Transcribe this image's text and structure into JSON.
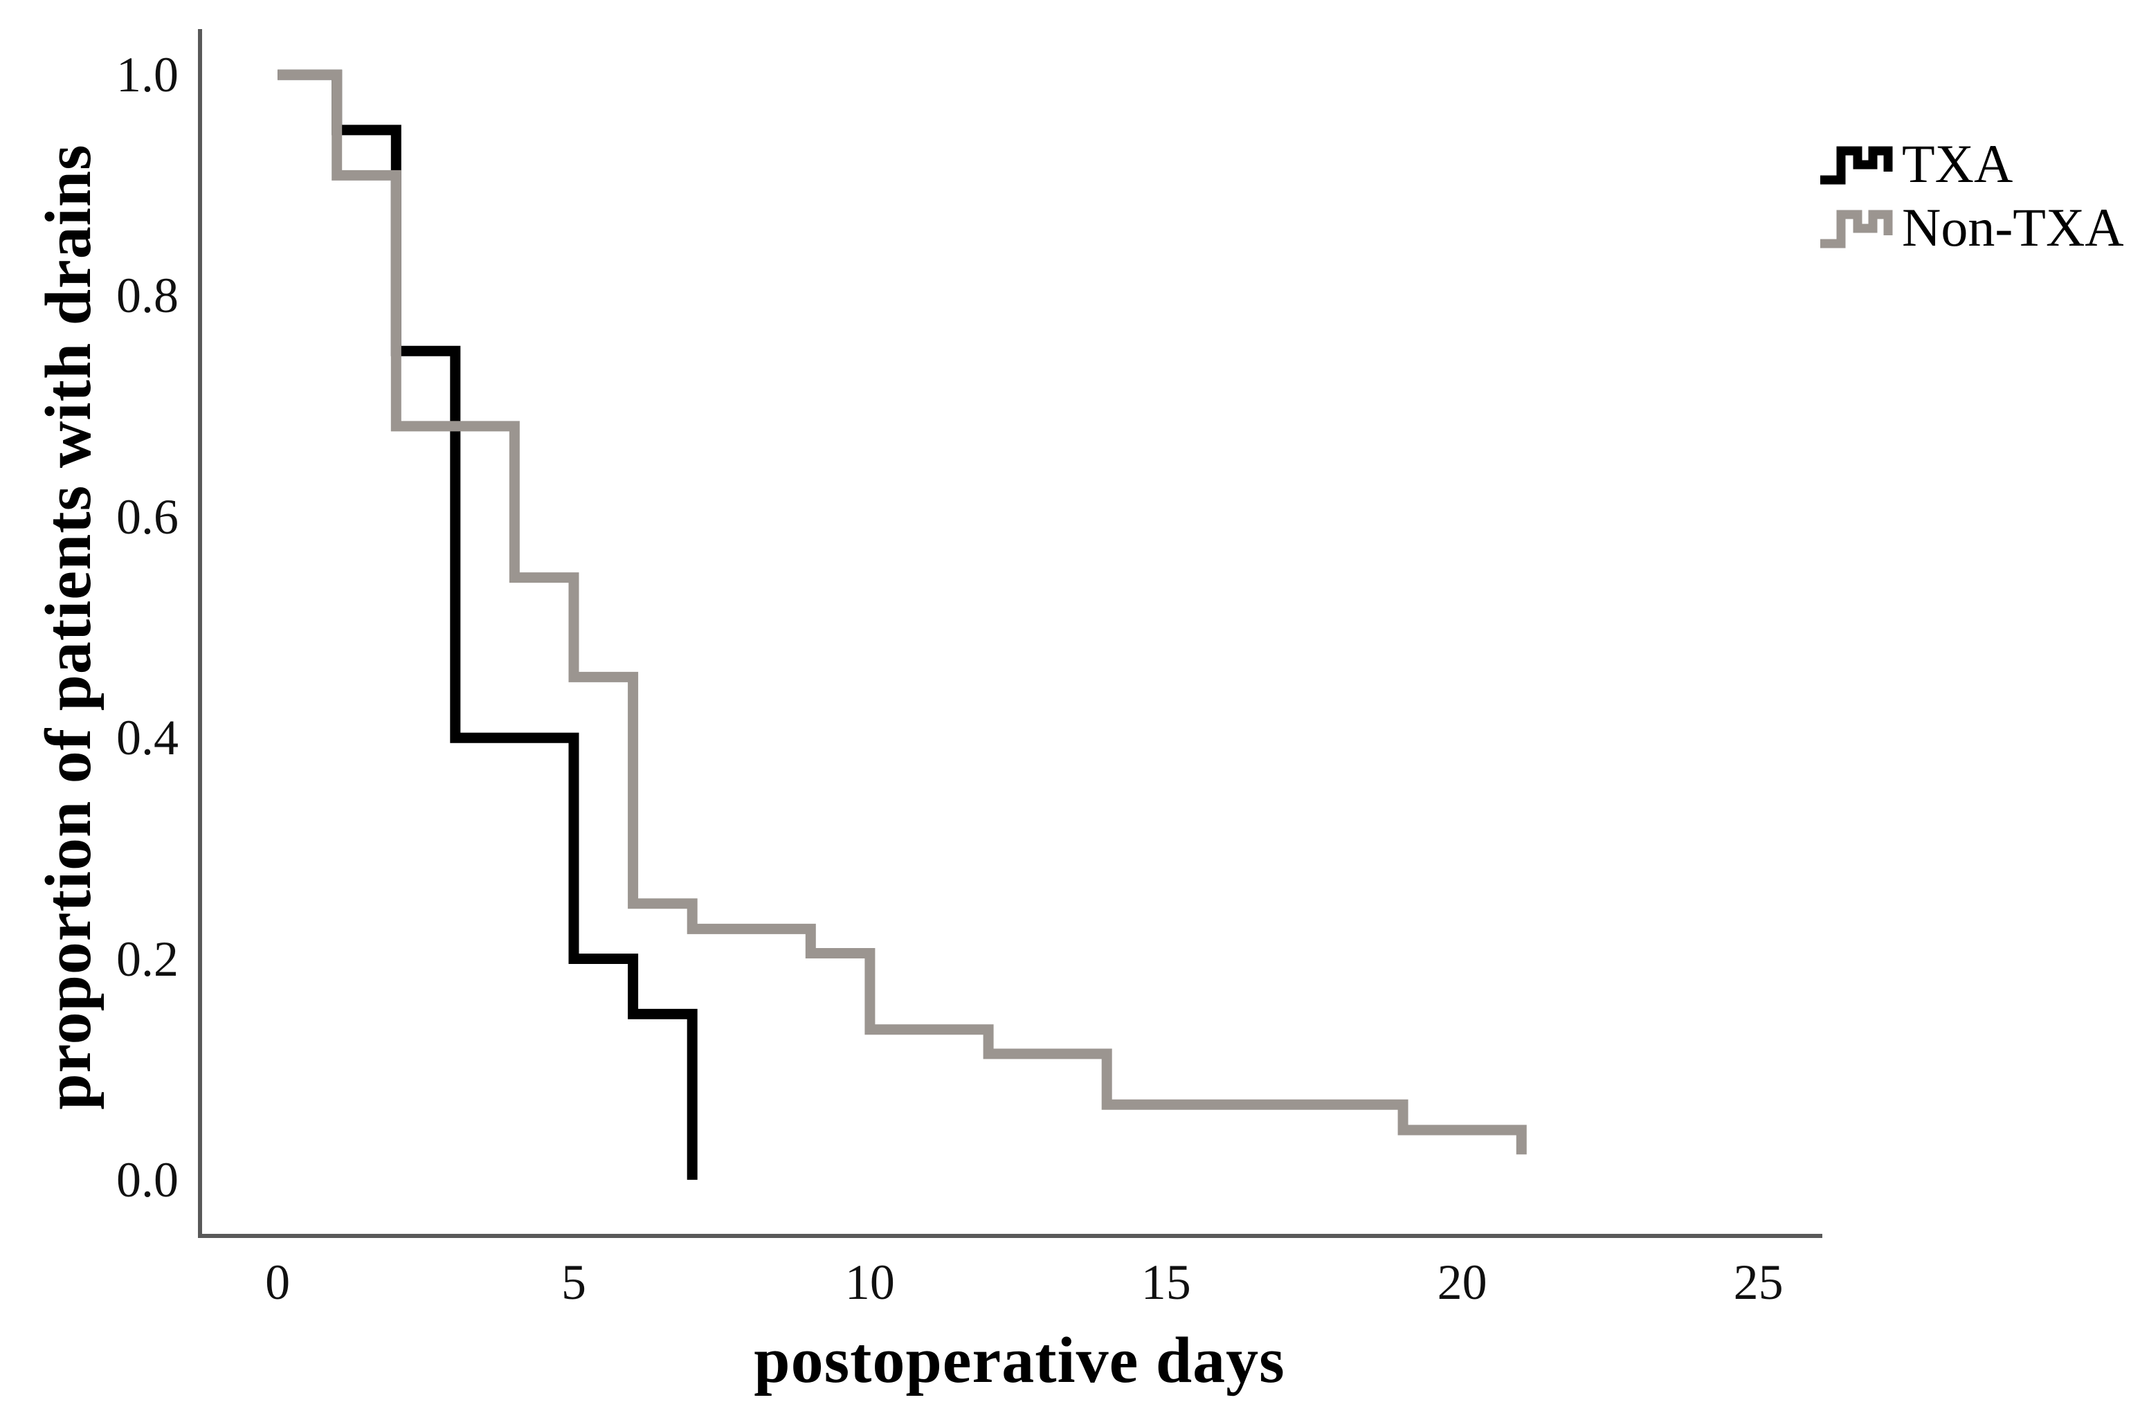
{
  "figure": {
    "background": "#ffffff",
    "axis_color": "#595959",
    "text_color": "#000000"
  },
  "legend": {
    "position": "upper-right",
    "entries": [
      {
        "label": "TXA",
        "swatch": "black-step-glyph"
      },
      {
        "label": "Non-TXA",
        "swatch": "gray-step-glyph"
      }
    ]
  },
  "chart_data": {
    "type": "line",
    "subtype": "kaplan-meier-step",
    "title": "",
    "xlabel": "postoperative days",
    "ylabel": "proportion of patients with drains",
    "grid": false,
    "legend_position": "upper right",
    "xlim": [
      -1.31,
      26.08
    ],
    "ylim": [
      -0.0508,
      1.0414
    ],
    "xticks": {
      "values": [
        0,
        5,
        10,
        15,
        20,
        25
      ],
      "labels": [
        "0",
        "5",
        "10",
        "15",
        "20",
        "25"
      ]
    },
    "yticks": {
      "values": [
        0.0,
        0.2,
        0.4,
        0.6,
        0.8,
        1.0
      ],
      "labels": [
        "0.0",
        "0.2",
        "0.4",
        "0.6",
        "0.8",
        "1.0"
      ]
    },
    "series": [
      {
        "name": "TXA",
        "color": "#000000",
        "points_note": "step values: [postoperative day, proportion still with drain]",
        "points": [
          [
            0,
            1.0
          ],
          [
            1,
            0.95
          ],
          [
            2,
            0.75
          ],
          [
            3,
            0.4
          ],
          [
            5,
            0.2
          ],
          [
            6,
            0.15
          ],
          [
            7,
            0.0
          ]
        ]
      },
      {
        "name": "Non-TXA",
        "color": "#9b9590",
        "points_note": "step values: [postoperative day, proportion still with drain]",
        "points": [
          [
            0,
            1.0
          ],
          [
            1,
            0.909
          ],
          [
            2,
            0.682
          ],
          [
            4,
            0.545
          ],
          [
            5,
            0.455
          ],
          [
            6,
            0.25
          ],
          [
            7,
            0.227
          ],
          [
            9,
            0.205
          ],
          [
            10,
            0.136
          ],
          [
            12,
            0.114
          ],
          [
            14,
            0.068
          ],
          [
            19,
            0.045
          ],
          [
            21,
            0.023
          ]
        ]
      }
    ]
  }
}
